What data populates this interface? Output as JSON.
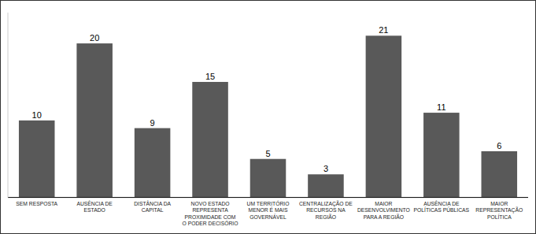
{
  "chart_data": {
    "type": "bar",
    "categories": [
      "SEM RESPOSTA",
      "AUSÊNCIA DE\nESTADO",
      "DISTÂNCIA DA\nCAPITAL",
      "NOVO ESTADO\nREPRESENTA\nPROXIMIDADE COM\nO PODER DECISÓRIO",
      "UM TERRITÓRIO\nMENOR É MAIS\nGOVERNÁVEL",
      "CENTRALIZAÇÃO DE\nRECURSOS NA\nREGIÃO",
      "MAIOR\nDESENVOLVIMENTO\nPARA A REGIÃO",
      "AUSÊNCIA DE\nPOLÍTICAS PÚBLICAS",
      "MAIOR\nREPRESENTAÇÃO\nPOLÍTICA"
    ],
    "values": [
      10,
      20,
      9,
      15,
      5,
      3,
      21,
      11,
      6
    ],
    "color": "#595959",
    "ylim": [
      0,
      24
    ],
    "data_labels": true,
    "tick_labels": "x"
  }
}
